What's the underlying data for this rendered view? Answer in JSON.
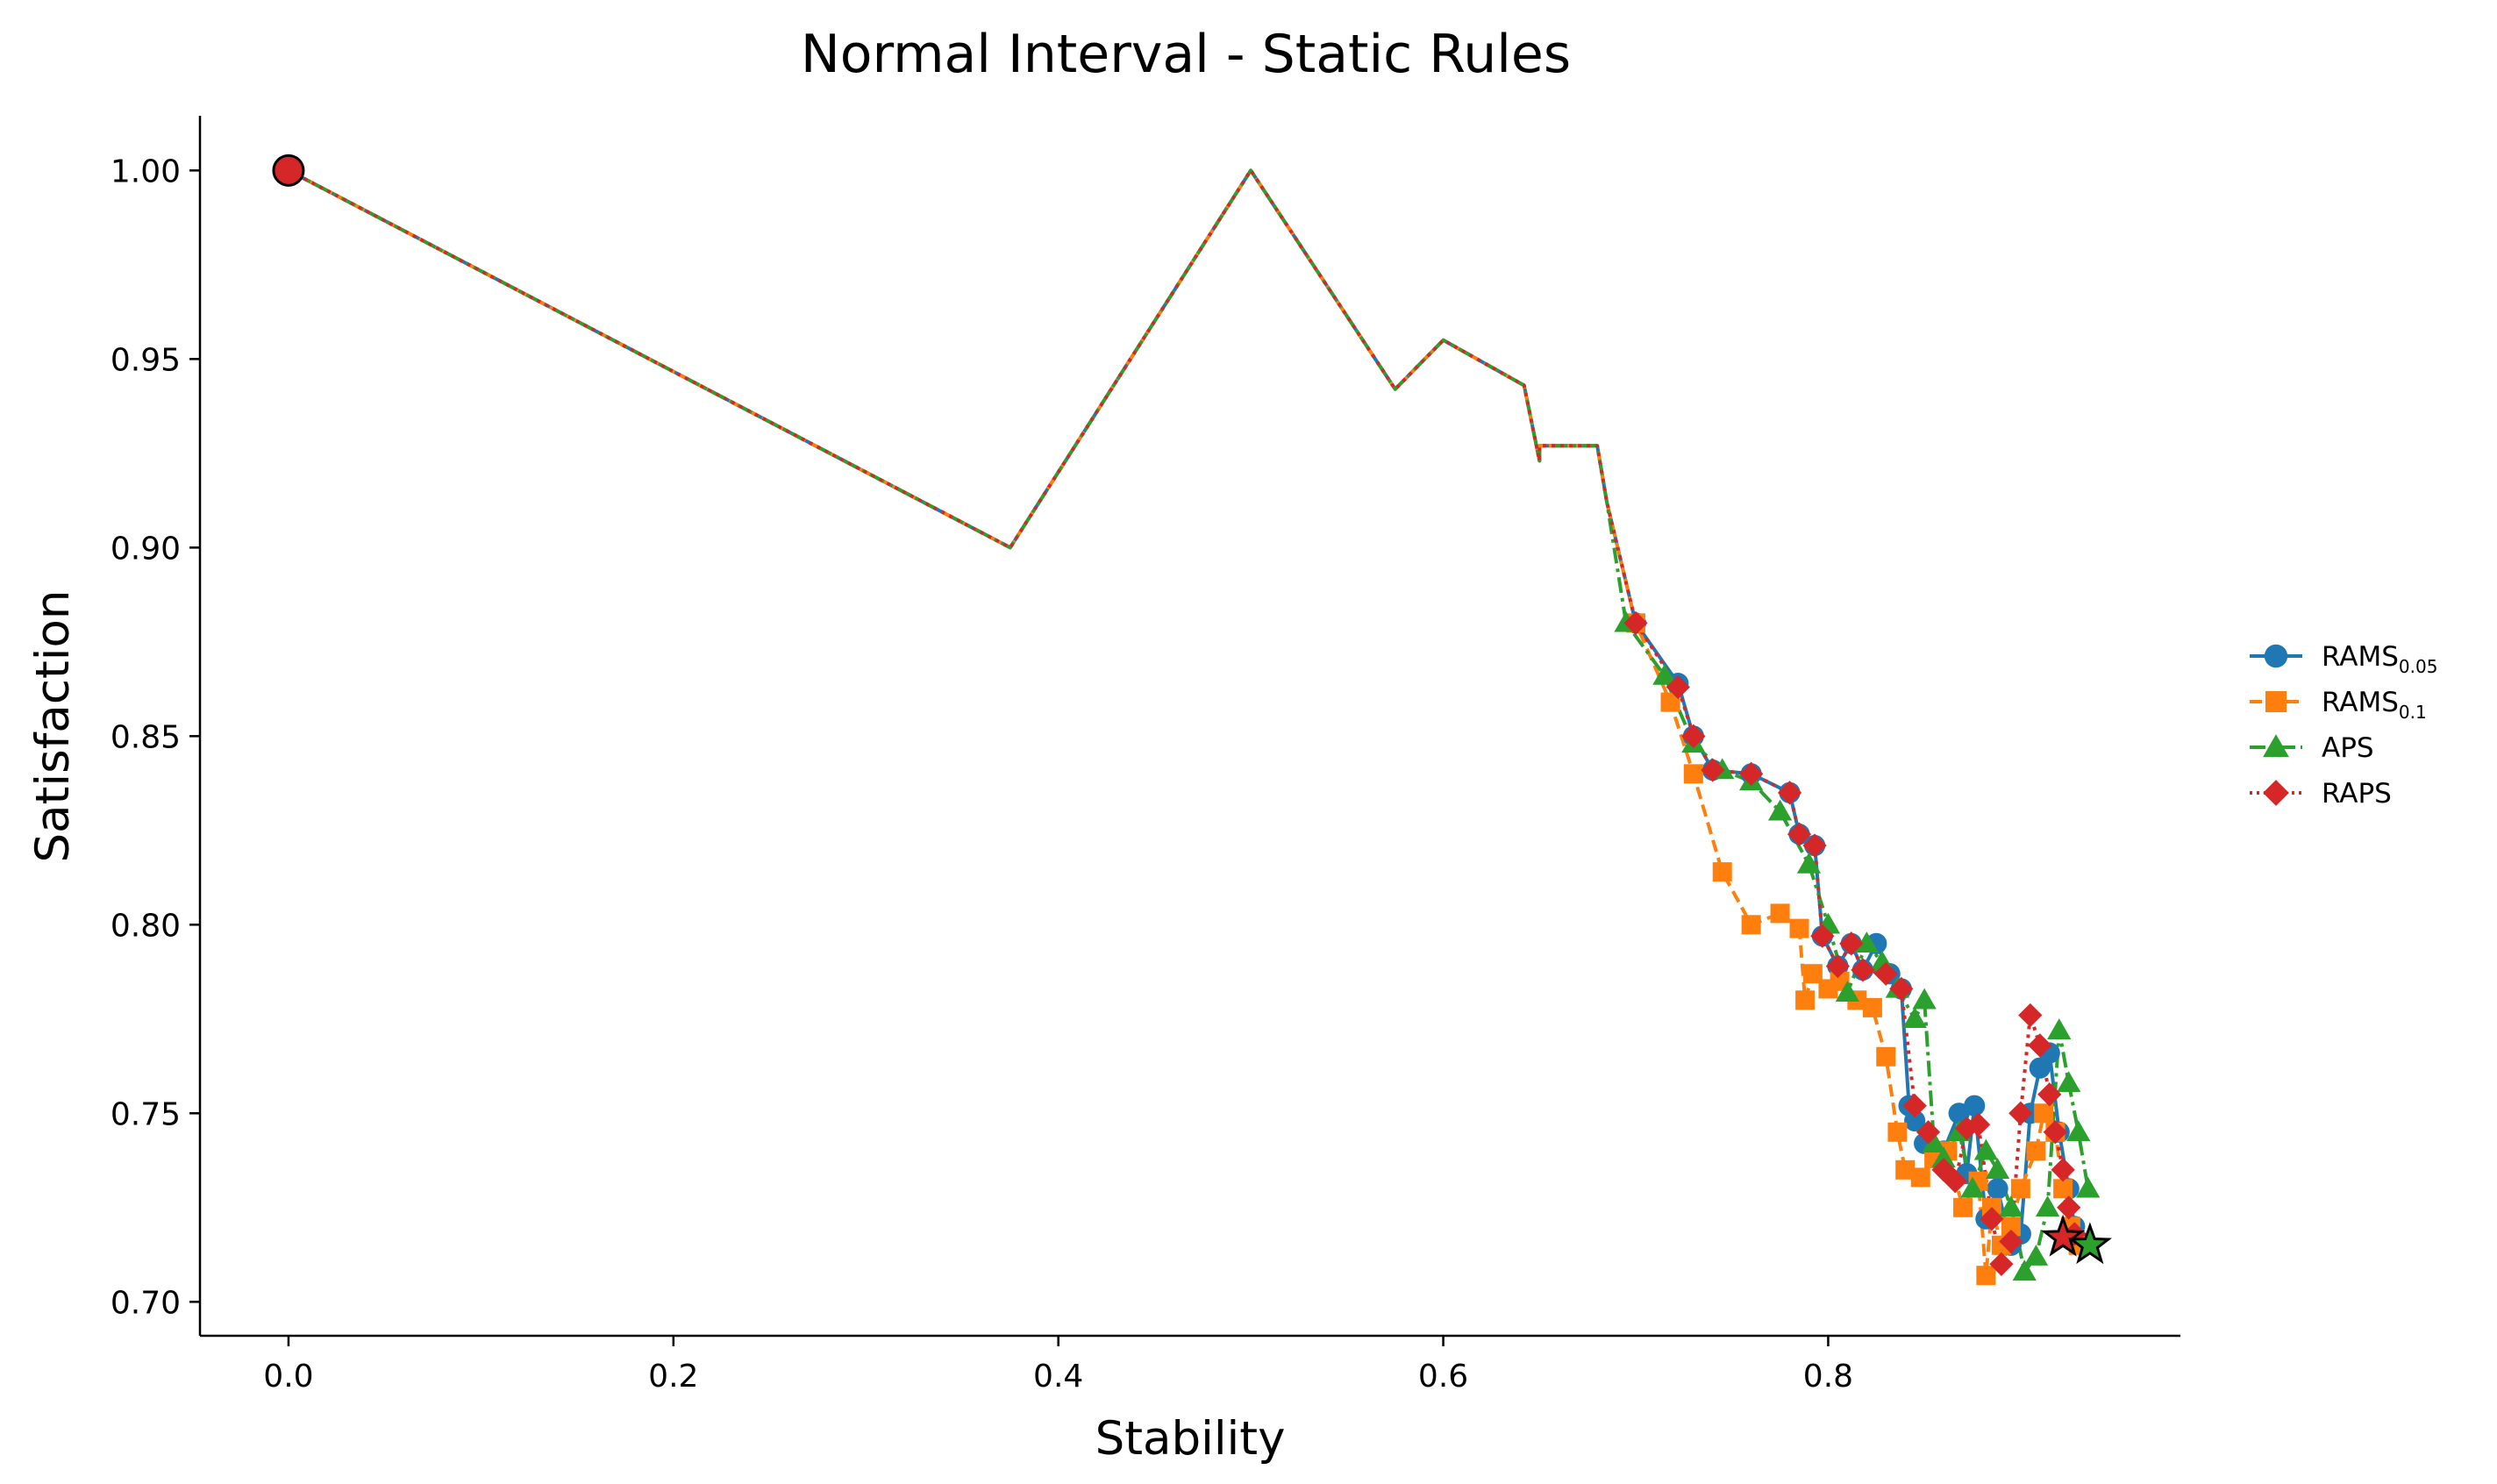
{
  "chart_data": {
    "type": "line",
    "title": "Normal Interval - Static Rules",
    "xlabel": "Stability",
    "ylabel": "Satisfaction",
    "xlim": [
      -0.046,
      0.983
    ],
    "ylim": [
      0.691,
      1.0145
    ],
    "xticks": [
      "0.0",
      "0.2",
      "0.4",
      "0.6",
      "0.8"
    ],
    "yticks": [
      "0.70",
      "0.75",
      "0.80",
      "0.85",
      "0.90",
      "0.95",
      "1.00"
    ],
    "grid": false,
    "legend_position": "right",
    "start_point": {
      "x": 0.0,
      "y": 1.0,
      "color": "#d62728"
    },
    "series": [
      {
        "name": "RAMS",
        "name_sub": "0.05",
        "color": "#1f77b4",
        "dash": "solid",
        "marker": "circle",
        "x": [
          0.0,
          0.375,
          0.5,
          0.575,
          0.6,
          0.642,
          0.65,
          0.65,
          0.68,
          0.685,
          0.7,
          0.722,
          0.73,
          0.74,
          0.76,
          0.78,
          0.785,
          0.793,
          0.797,
          0.805,
          0.812,
          0.818,
          0.825,
          0.832,
          0.838,
          0.842,
          0.845,
          0.85,
          0.86,
          0.868,
          0.872,
          0.876,
          0.882,
          0.888,
          0.895,
          0.9,
          0.905,
          0.91,
          0.915,
          0.92,
          0.925,
          0.928,
          0.93
        ],
        "y": [
          1.0,
          0.9,
          1.0,
          0.942,
          0.955,
          0.943,
          0.923,
          0.927,
          0.927,
          0.912,
          0.88,
          0.864,
          0.85,
          0.841,
          0.84,
          0.835,
          0.824,
          0.821,
          0.797,
          0.789,
          0.795,
          0.788,
          0.795,
          0.787,
          0.783,
          0.752,
          0.748,
          0.742,
          0.74,
          0.75,
          0.734,
          0.752,
          0.722,
          0.73,
          0.715,
          0.718,
          0.75,
          0.762,
          0.766,
          0.745,
          0.73,
          0.72,
          0.716
        ]
      },
      {
        "name": "RAMS",
        "name_sub": "0.1",
        "color": "#ff7f0e",
        "dash": "dashed",
        "marker": "square",
        "x": [
          0.0,
          0.375,
          0.5,
          0.575,
          0.6,
          0.642,
          0.65,
          0.65,
          0.68,
          0.685,
          0.7,
          0.718,
          0.73,
          0.745,
          0.76,
          0.775,
          0.785,
          0.788,
          0.792,
          0.8,
          0.806,
          0.815,
          0.823,
          0.83,
          0.836,
          0.84,
          0.848,
          0.855,
          0.862,
          0.87,
          0.878,
          0.882,
          0.885,
          0.89,
          0.895,
          0.9,
          0.908,
          0.912,
          0.918,
          0.922,
          0.926,
          0.93
        ],
        "y": [
          1.0,
          0.9,
          1.0,
          0.942,
          0.955,
          0.943,
          0.923,
          0.927,
          0.927,
          0.912,
          0.88,
          0.859,
          0.84,
          0.814,
          0.8,
          0.803,
          0.799,
          0.78,
          0.787,
          0.783,
          0.785,
          0.78,
          0.778,
          0.765,
          0.745,
          0.735,
          0.733,
          0.738,
          0.74,
          0.725,
          0.732,
          0.707,
          0.725,
          0.715,
          0.72,
          0.73,
          0.74,
          0.75,
          0.745,
          0.73,
          0.72,
          0.715
        ]
      },
      {
        "name": "APS",
        "name_sub": "",
        "color": "#2ca02c",
        "dash": "dashdot",
        "marker": "triangle",
        "x": [
          0.0,
          0.375,
          0.5,
          0.575,
          0.6,
          0.642,
          0.65,
          0.65,
          0.68,
          0.685,
          0.695,
          0.715,
          0.73,
          0.745,
          0.76,
          0.775,
          0.79,
          0.8,
          0.81,
          0.82,
          0.828,
          0.836,
          0.845,
          0.85,
          0.855,
          0.86,
          0.868,
          0.875,
          0.882,
          0.888,
          0.895,
          0.902,
          0.908,
          0.914,
          0.92,
          0.925,
          0.93,
          0.935
        ],
        "y": [
          1.0,
          0.9,
          1.0,
          0.942,
          0.955,
          0.943,
          0.923,
          0.927,
          0.927,
          0.912,
          0.88,
          0.866,
          0.848,
          0.841,
          0.838,
          0.83,
          0.816,
          0.8,
          0.782,
          0.795,
          0.79,
          0.783,
          0.775,
          0.78,
          0.742,
          0.738,
          0.745,
          0.73,
          0.74,
          0.735,
          0.725,
          0.708,
          0.712,
          0.725,
          0.772,
          0.758,
          0.745,
          0.73
        ]
      },
      {
        "name": "RAPS",
        "name_sub": "",
        "color": "#d62728",
        "dash": "dotted",
        "marker": "diamond",
        "x": [
          0.0,
          0.375,
          0.5,
          0.575,
          0.6,
          0.642,
          0.65,
          0.65,
          0.68,
          0.685,
          0.7,
          0.722,
          0.73,
          0.74,
          0.76,
          0.78,
          0.785,
          0.793,
          0.797,
          0.805,
          0.812,
          0.818,
          0.83,
          0.838,
          0.845,
          0.852,
          0.86,
          0.866,
          0.872,
          0.878,
          0.885,
          0.89,
          0.895,
          0.9,
          0.905,
          0.91,
          0.915,
          0.918,
          0.922,
          0.925,
          0.928
        ],
        "y": [
          1.0,
          0.9,
          1.0,
          0.942,
          0.955,
          0.943,
          0.923,
          0.927,
          0.927,
          0.912,
          0.88,
          0.863,
          0.85,
          0.841,
          0.84,
          0.835,
          0.824,
          0.821,
          0.797,
          0.789,
          0.795,
          0.788,
          0.787,
          0.783,
          0.752,
          0.745,
          0.735,
          0.732,
          0.746,
          0.747,
          0.722,
          0.71,
          0.716,
          0.75,
          0.776,
          0.768,
          0.755,
          0.745,
          0.735,
          0.725,
          0.718
        ]
      }
    ],
    "end_markers": [
      {
        "x": 0.922,
        "y": 0.717,
        "color": "#d62728"
      },
      {
        "x": 0.936,
        "y": 0.715,
        "color": "#2ca02c"
      }
    ]
  }
}
